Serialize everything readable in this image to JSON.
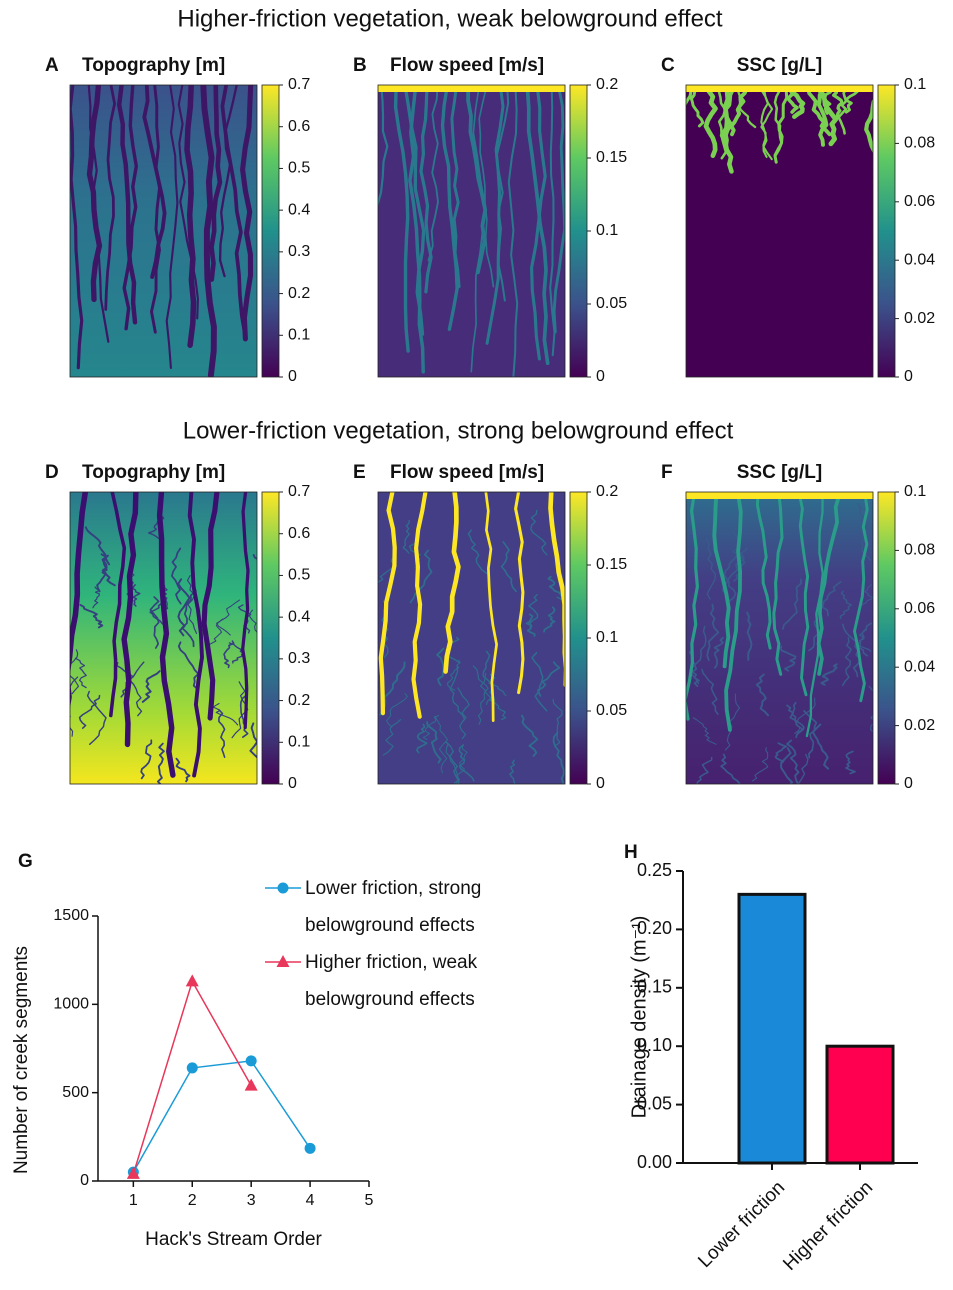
{
  "headings": [
    "Higher-friction vegetation, weak belowground effect",
    "Lower-friction vegetation, strong belowground effect"
  ],
  "chart_data": [
    {
      "type": "heatmap",
      "label": "A",
      "title": "Topography [m]",
      "ylim": [
        0,
        0.7
      ],
      "yticks": [
        0,
        0.1,
        0.2,
        0.3,
        0.4,
        0.5,
        0.6,
        0.7
      ]
    },
    {
      "type": "heatmap",
      "label": "B",
      "title": "Flow speed [m/s]",
      "ylim": [
        0,
        0.2
      ],
      "yticks": [
        0,
        0.05,
        0.1,
        0.15,
        0.2
      ]
    },
    {
      "type": "heatmap",
      "label": "C",
      "title": "SSC [g/L]",
      "ylim": [
        0,
        0.1
      ],
      "yticks": [
        0,
        0.02,
        0.04,
        0.06,
        0.08,
        0.1
      ]
    },
    {
      "type": "heatmap",
      "label": "D",
      "title": "Topography [m]",
      "ylim": [
        0,
        0.7
      ],
      "yticks": [
        0,
        0.1,
        0.2,
        0.3,
        0.4,
        0.5,
        0.6,
        0.7
      ]
    },
    {
      "type": "heatmap",
      "label": "E",
      "title": "Flow speed [m/s]",
      "ylim": [
        0,
        0.2
      ],
      "yticks": [
        0,
        0.05,
        0.1,
        0.15,
        0.2
      ]
    },
    {
      "type": "heatmap",
      "label": "F",
      "title": "SSC [g/L]",
      "ylim": [
        0,
        0.1
      ],
      "yticks": [
        0,
        0.02,
        0.04,
        0.06,
        0.08,
        0.1
      ]
    },
    {
      "type": "line",
      "label": "G",
      "xlabel": "Hack's Stream Order",
      "ylabel": "Number of creek segments",
      "xlim": [
        0.4,
        5
      ],
      "xticks": [
        1,
        2,
        3,
        4,
        5
      ],
      "ylim": [
        0,
        1500
      ],
      "yticks": [
        0,
        500,
        1000,
        1500
      ],
      "legend": "top-right",
      "series": [
        {
          "name": "Lower friction, strong belowground effects",
          "color": "#1a9bd7",
          "marker": "circle",
          "x": [
            1,
            2,
            3,
            4
          ],
          "values": [
            50,
            640,
            680,
            185
          ]
        },
        {
          "name": "Higher friction, weak belowground effects",
          "color": "#e8375a",
          "marker": "triangle",
          "x": [
            1,
            2,
            3
          ],
          "values": [
            40,
            1130,
            540
          ]
        }
      ]
    },
    {
      "type": "bar",
      "label": "H",
      "ylabel": "Drainage density (m⁻¹)",
      "categories": [
        "Lower friction",
        "Higher friction"
      ],
      "values": [
        0.23,
        0.1
      ],
      "colors": [
        "#1a8ad8",
        "#ff0050"
      ],
      "ylim": [
        0,
        0.25
      ],
      "yticks": [
        {
          "value": 0,
          "label": "0.00"
        },
        {
          "value": 0.05,
          "label": "0.05"
        },
        {
          "value": 0.1,
          "label": "0.10"
        },
        {
          "value": 0.15,
          "label": "0.15"
        },
        {
          "value": 0.2,
          "label": "0.20"
        },
        {
          "value": 0.25,
          "label": "0.25"
        }
      ]
    }
  ]
}
